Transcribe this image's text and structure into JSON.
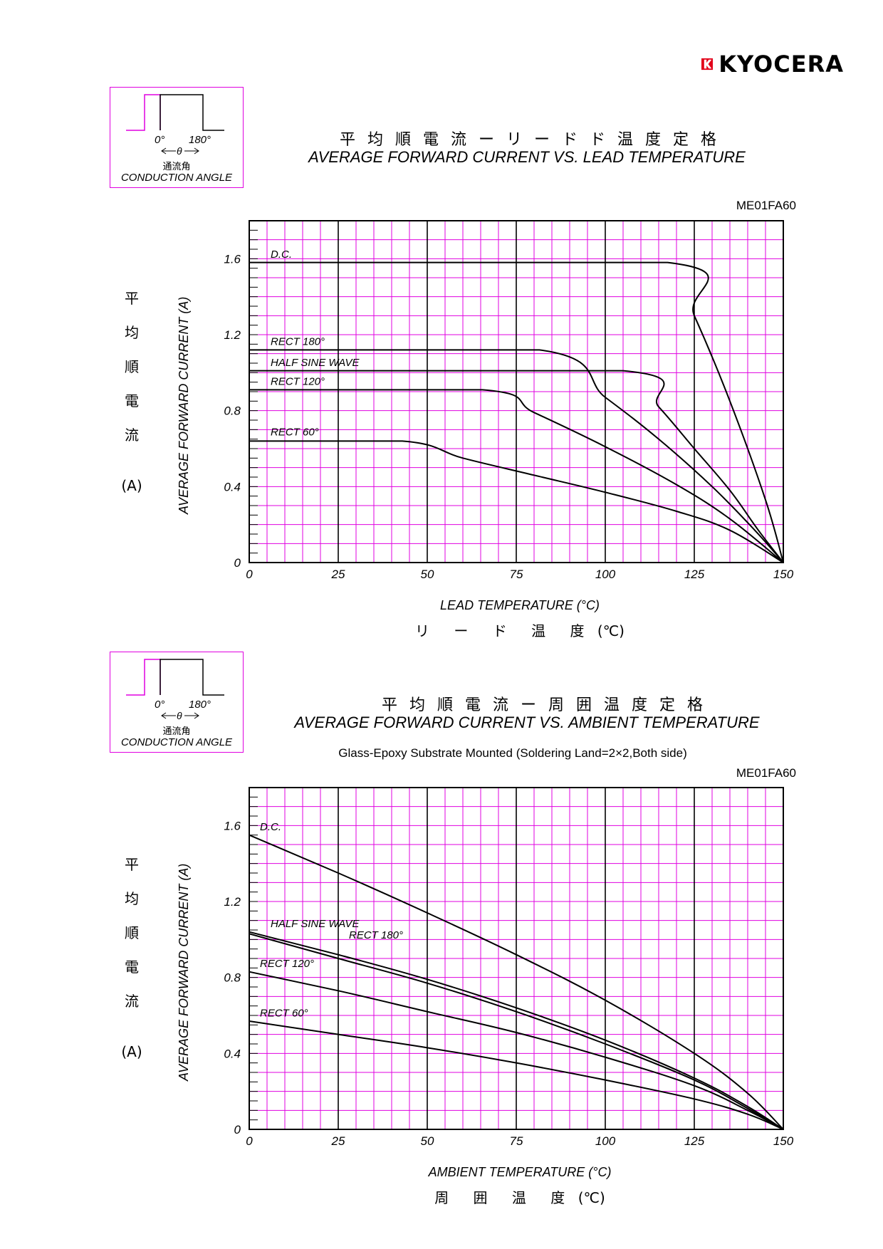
{
  "brand": {
    "name": "KYOCERA"
  },
  "inset": {
    "deg0": "0°",
    "deg180": "180°",
    "theta": "θ",
    "label_jp": "通流角",
    "label_en": "CONDUCTION ANGLE"
  },
  "colors": {
    "grid": "#e000e0",
    "axis": "#000000",
    "curve": "#000000"
  },
  "chart_data": [
    {
      "type": "line",
      "title_jp": "平均順電流ーリードド温度定格",
      "title": "AVERAGE FORWARD CURRENT VS. LEAD TEMPERATURE",
      "part_code": "ME01FA60",
      "xlabel": "LEAD TEMPERATURE (°C)",
      "xlabel_jp": "リ ー ド 温 度",
      "xlabel_jp_unit": "(℃)",
      "ylabel": "AVERAGE FORWARD CURRENT (A)",
      "ylabel_jp": [
        "平",
        "均",
        "順",
        "電",
        "流"
      ],
      "ylabel_jp_unit": "(A)",
      "xlim": [
        0,
        150
      ],
      "ylim": [
        0,
        1.8
      ],
      "xticks": [
        "0",
        "25",
        "50",
        "75",
        "100",
        "125",
        "150"
      ],
      "yticks": [
        "0",
        "0.4",
        "0.8",
        "1.2",
        "1.6"
      ],
      "grid": true,
      "series": [
        {
          "name": "D.C.",
          "points": [
            [
              0,
              1.58
            ],
            [
              117.5,
              1.58
            ],
            [
              125,
              1.3
            ],
            [
              135,
              0.85
            ],
            [
              145,
              0.33
            ],
            [
              150,
              0
            ]
          ]
        },
        {
          "name": "RECT 180°",
          "points": [
            [
              0,
              1.12
            ],
            [
              81.5,
              1.12
            ],
            [
              100,
              0.87
            ],
            [
              115,
              0.65
            ],
            [
              130,
              0.4
            ],
            [
              142,
              0.17
            ],
            [
              150,
              0
            ]
          ]
        },
        {
          "name": "HALF SINE WAVE",
          "points": [
            [
              0,
              1.01
            ],
            [
              105,
              1.01
            ],
            [
              115,
              0.82
            ],
            [
              125,
              0.6
            ],
            [
              135,
              0.38
            ],
            [
              143,
              0.17
            ],
            [
              150,
              0
            ]
          ]
        },
        {
          "name": "RECT 120°",
          "points": [
            [
              0,
              0.91
            ],
            [
              65.5,
              0.91
            ],
            [
              80,
              0.79
            ],
            [
              100,
              0.61
            ],
            [
              120,
              0.41
            ],
            [
              135,
              0.23
            ],
            [
              150,
              0
            ]
          ]
        },
        {
          "name": "RECT 60°",
          "points": [
            [
              0,
              0.64
            ],
            [
              43,
              0.64
            ],
            [
              60,
              0.55
            ],
            [
              80,
              0.46
            ],
            [
              100,
              0.37
            ],
            [
              120,
              0.27
            ],
            [
              135,
              0.17
            ],
            [
              150,
              0
            ]
          ]
        }
      ]
    },
    {
      "type": "line",
      "title_jp": "平均順電流ー周囲温度定格",
      "title": "AVERAGE FORWARD CURRENT VS. AMBIENT TEMPERATURE",
      "subtitle": "Glass-Epoxy Substrate Mounted (Soldering Land=2×2,Both side)",
      "part_code": "ME01FA60",
      "xlabel": "AMBIENT TEMPERATURE (°C)",
      "xlabel_jp": "周 囲 温 度",
      "xlabel_jp_unit": "(℃)",
      "ylabel": "AVERAGE FORWARD CURRENT (A)",
      "ylabel_jp": [
        "平",
        "均",
        "順",
        "電",
        "流"
      ],
      "ylabel_jp_unit": "(A)",
      "xlim": [
        0,
        150
      ],
      "ylim": [
        0,
        1.8
      ],
      "xticks": [
        "0",
        "25",
        "50",
        "75",
        "100",
        "125",
        "150"
      ],
      "yticks": [
        "0",
        "0.4",
        "0.8",
        "1.2",
        "1.6"
      ],
      "grid": true,
      "series": [
        {
          "name": "D.C.",
          "points": [
            [
              0,
              1.55
            ],
            [
              25,
              1.35
            ],
            [
              50,
              1.14
            ],
            [
              75,
              0.92
            ],
            [
              100,
              0.68
            ],
            [
              125,
              0.4
            ],
            [
              140,
              0.19
            ],
            [
              150,
              0
            ]
          ]
        },
        {
          "name": "HALF SINE WAVE",
          "points": [
            [
              0,
              1.04
            ],
            [
              25,
              0.92
            ],
            [
              50,
              0.79
            ],
            [
              75,
              0.64
            ],
            [
              100,
              0.47
            ],
            [
              125,
              0.27
            ],
            [
              140,
              0.12
            ],
            [
              150,
              0
            ]
          ]
        },
        {
          "name": "RECT 180°",
          "points": [
            [
              0,
              1.03
            ],
            [
              25,
              0.9
            ],
            [
              50,
              0.77
            ],
            [
              75,
              0.62
            ],
            [
              100,
              0.45
            ],
            [
              125,
              0.26
            ],
            [
              140,
              0.11
            ],
            [
              150,
              0
            ]
          ]
        },
        {
          "name": "RECT 120°",
          "points": [
            [
              0,
              0.83
            ],
            [
              25,
              0.73
            ],
            [
              50,
              0.62
            ],
            [
              75,
              0.51
            ],
            [
              100,
              0.38
            ],
            [
              125,
              0.23
            ],
            [
              140,
              0.1
            ],
            [
              150,
              0
            ]
          ]
        },
        {
          "name": "RECT 60°",
          "points": [
            [
              0,
              0.57
            ],
            [
              25,
              0.5
            ],
            [
              50,
              0.43
            ],
            [
              75,
              0.35
            ],
            [
              100,
              0.26
            ],
            [
              125,
              0.16
            ],
            [
              140,
              0.08
            ],
            [
              150,
              0
            ]
          ]
        }
      ]
    }
  ]
}
